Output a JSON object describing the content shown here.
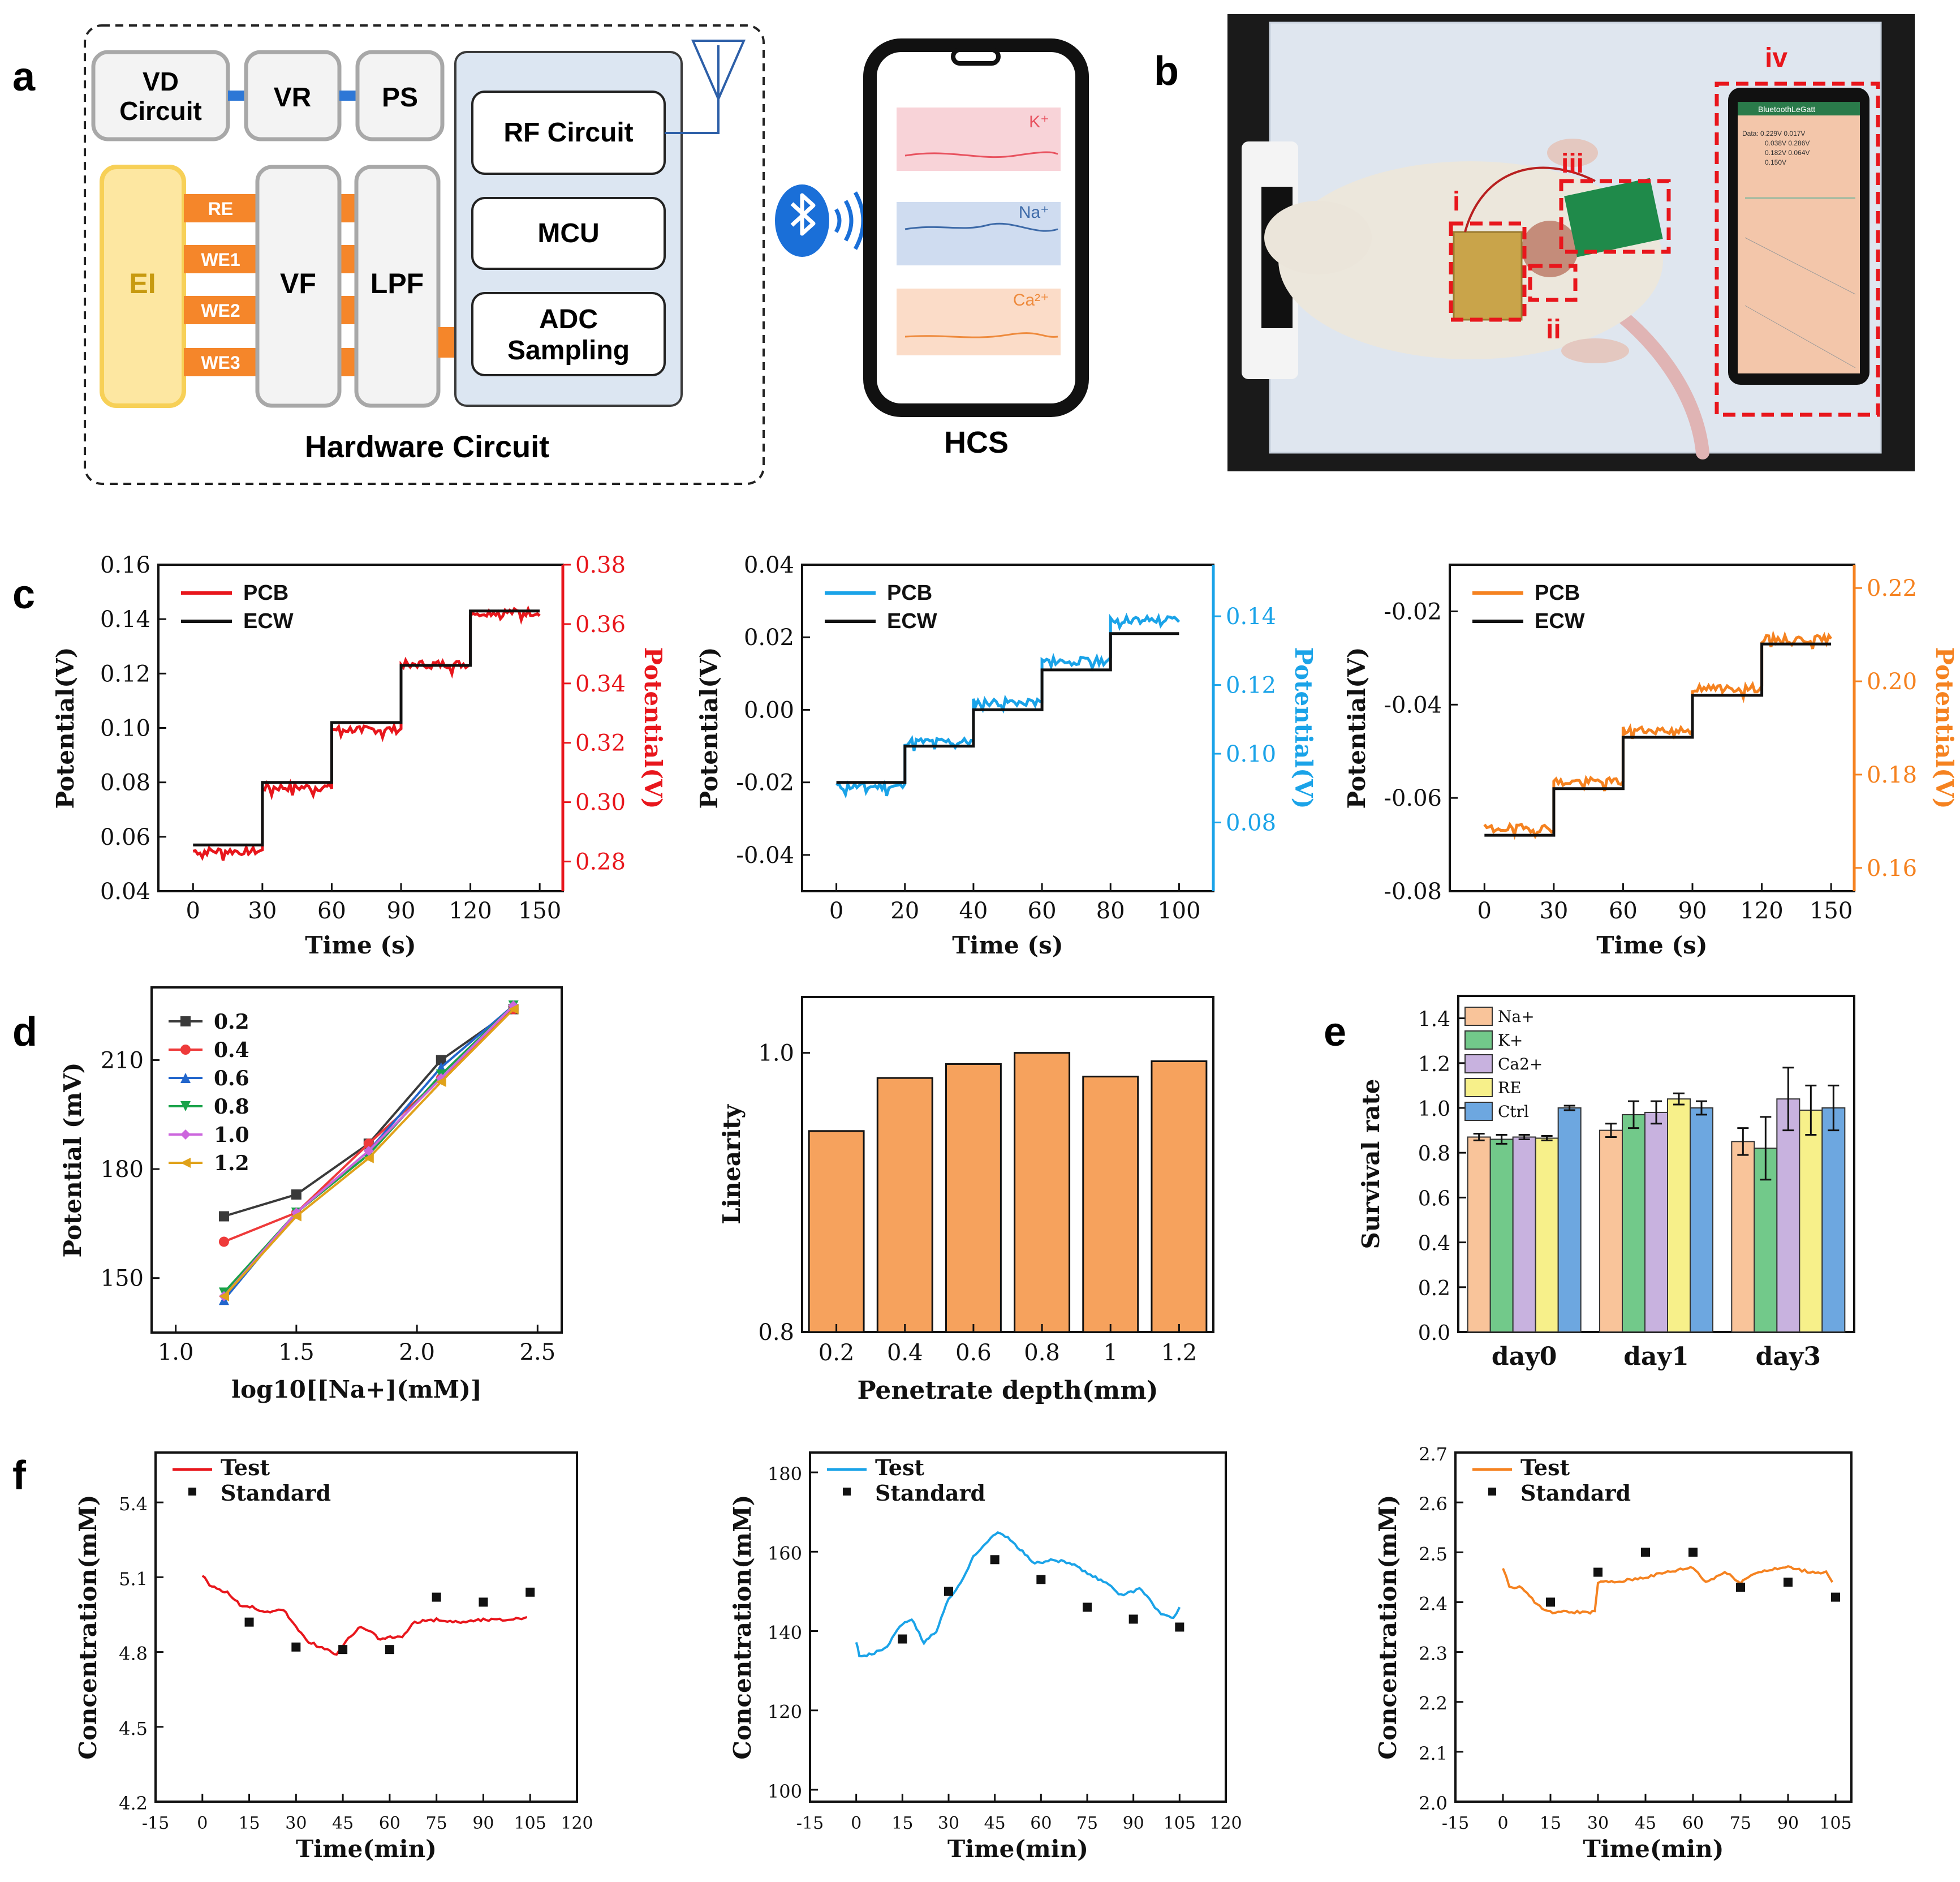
{
  "panels": {
    "a": "a",
    "b": "b",
    "c": "c",
    "d": "d",
    "e": "e",
    "f": "f"
  },
  "schematic": {
    "vd_circuit": [
      "VD",
      "Circuit"
    ],
    "vr": "VR",
    "ps": "PS",
    "ei": "EI",
    "electrodes": [
      "RE",
      "WE1",
      "WE2",
      "WE3"
    ],
    "vf": "VF",
    "lpf": "LPF",
    "rf_circuit": "RF Circuit",
    "mcu": "MCU",
    "adc": [
      "ADC",
      "Sampling"
    ],
    "hardware_caption": "Hardware Circuit",
    "hcs_caption": "HCS",
    "phone_traces": [
      {
        "label": "K⁺",
        "band": "#f8d3d8",
        "line": "#e8525f"
      },
      {
        "label": "Na⁺",
        "band": "#cfdcf0",
        "line": "#3d6aa8"
      },
      {
        "label": "Ca²⁺",
        "band": "#fbdcc8",
        "line": "#ee8a3c"
      }
    ]
  },
  "photo": {
    "labels": [
      "i",
      "ii",
      "iii",
      "iv"
    ],
    "screen_header": "BluetoothLeGatt",
    "screen_text": [
      "Data:  0.229V  0.017V",
      "0.038V  0.286V",
      "0.182V  0.064V",
      "0.150V"
    ]
  },
  "chart_data": [
    {
      "id": "c1",
      "type": "line",
      "xlabel": "Time (s)",
      "ylabel": "Potential(V)",
      "y2label": "Potential(V)",
      "xlim": [
        -15,
        160
      ],
      "xticks": [
        0,
        30,
        60,
        90,
        120,
        150
      ],
      "ylim": [
        0.04,
        0.16
      ],
      "yticks": [
        0.04,
        0.06,
        0.08,
        0.1,
        0.12,
        0.14,
        0.16
      ],
      "y2lim": [
        0.27,
        0.38
      ],
      "y2ticks": [
        0.28,
        0.3,
        0.32,
        0.34,
        0.36,
        0.38
      ],
      "legend": [
        "PCB",
        "ECW"
      ],
      "color": "#e8161c",
      "steps_t": [
        0,
        30,
        60,
        90,
        120,
        150
      ],
      "ecw_levels": [
        0.057,
        0.08,
        0.102,
        0.123,
        0.143
      ],
      "pcb_levels": [
        0.2835,
        0.305,
        0.3245,
        0.3465,
        0.364
      ]
    },
    {
      "id": "c2",
      "type": "line",
      "xlabel": "Time (s)",
      "ylabel": "Potential(V)",
      "y2label": "Potential(V)",
      "xlim": [
        -10,
        110
      ],
      "xticks": [
        0,
        20,
        40,
        60,
        80,
        100
      ],
      "ylim": [
        -0.05,
        0.04
      ],
      "yticks": [
        -0.04,
        -0.02,
        0.0,
        0.02,
        0.04
      ],
      "y2lim": [
        0.06,
        0.155
      ],
      "y2ticks": [
        0.08,
        0.1,
        0.12,
        0.14
      ],
      "legend": [
        "PCB",
        "ECW"
      ],
      "color": "#1aa3e8",
      "steps_t": [
        0,
        20,
        40,
        60,
        80,
        100
      ],
      "ecw_levels": [
        -0.02,
        -0.01,
        0.0,
        0.011,
        0.021
      ],
      "pcb_levels": [
        0.0905,
        0.1035,
        0.115,
        0.127,
        0.139
      ]
    },
    {
      "id": "c3",
      "type": "line",
      "xlabel": "Time (s)",
      "ylabel": "Potential(V)",
      "y2label": "Potential(V)",
      "xlim": [
        -15,
        160
      ],
      "xticks": [
        0,
        30,
        60,
        90,
        120,
        150
      ],
      "ylim": [
        -0.08,
        -0.01
      ],
      "yticks": [
        -0.08,
        -0.06,
        -0.04,
        -0.02
      ],
      "y2lim": [
        0.155,
        0.225
      ],
      "y2ticks": [
        0.16,
        0.18,
        0.2,
        0.22
      ],
      "legend": [
        "PCB",
        "ECW"
      ],
      "color": "#f58220",
      "steps_t": [
        0,
        30,
        60,
        90,
        120,
        150
      ],
      "ecw_levels": [
        -0.068,
        -0.058,
        -0.047,
        -0.038,
        -0.027
      ],
      "pcb_levels": [
        0.1685,
        0.1785,
        0.1895,
        0.1985,
        0.209
      ]
    },
    {
      "id": "d1",
      "type": "line",
      "xlabel": "log10[[Na+](mM)]",
      "ylabel": "Potential (mV)",
      "xlim": [
        0.9,
        2.6
      ],
      "xticks": [
        1.0,
        1.5,
        2.0,
        2.5
      ],
      "ylim": [
        135,
        230
      ],
      "yticks": [
        150,
        180,
        210
      ],
      "x": [
        1.2,
        1.5,
        1.8,
        2.1,
        2.4
      ],
      "series": [
        {
          "name": "0.2",
          "color": "#3a3a3a",
          "marker": "square",
          "values": [
            167,
            173,
            187,
            210,
            224
          ]
        },
        {
          "name": "0.4",
          "color": "#ee3a3a",
          "marker": "circle",
          "values": [
            160,
            168,
            187,
            205,
            224
          ]
        },
        {
          "name": "0.6",
          "color": "#2266cc",
          "marker": "triangle-up",
          "values": [
            144,
            168,
            185,
            208,
            225
          ]
        },
        {
          "name": "0.8",
          "color": "#1aa34a",
          "marker": "triangle-down",
          "values": [
            146,
            168,
            184,
            206,
            225
          ]
        },
        {
          "name": "1.0",
          "color": "#cc66dd",
          "marker": "diamond",
          "values": [
            145,
            168,
            185,
            205,
            225
          ]
        },
        {
          "name": "1.2",
          "color": "#e0a21a",
          "marker": "triangle-left",
          "values": [
            145,
            167,
            183,
            204,
            224
          ]
        }
      ]
    },
    {
      "id": "d2",
      "type": "bar",
      "xlabel": "Penetrate depth(mm)",
      "ylabel": "Linearity",
      "ylim": [
        0.8,
        1.04
      ],
      "yticks": [
        0.8,
        1.0
      ],
      "categories": [
        "0.2",
        "0.4",
        "0.6",
        "0.8",
        "1",
        "1.2"
      ],
      "values": [
        0.944,
        0.982,
        0.992,
        1.0,
        0.983,
        0.994
      ],
      "color": "#f6a25d"
    },
    {
      "id": "e",
      "type": "bar",
      "xlabel": "",
      "ylabel": "Survival rate",
      "ylim": [
        0,
        1.5
      ],
      "yticks": [
        0.0,
        0.2,
        0.4,
        0.6,
        0.8,
        1.0,
        1.2,
        1.4
      ],
      "categories": [
        "day0",
        "day1",
        "day3"
      ],
      "series": [
        {
          "name": "Na+",
          "color": "#f9c49a",
          "values": [
            0.87,
            0.9,
            0.85
          ],
          "err": [
            0.015,
            0.03,
            0.06
          ]
        },
        {
          "name": "K+",
          "color": "#72c98a",
          "values": [
            0.86,
            0.97,
            0.82
          ],
          "err": [
            0.02,
            0.06,
            0.14
          ]
        },
        {
          "name": "Ca2+",
          "color": "#c8b2df",
          "values": [
            0.87,
            0.98,
            1.04
          ],
          "err": [
            0.01,
            0.05,
            0.14
          ]
        },
        {
          "name": "RE",
          "color": "#f7f08a",
          "values": [
            0.865,
            1.04,
            0.99
          ],
          "err": [
            0.01,
            0.025,
            0.11
          ]
        },
        {
          "name": "Ctrl",
          "color": "#6da7e0",
          "values": [
            1.0,
            1.0,
            1.0
          ],
          "err": [
            0.01,
            0.03,
            0.1
          ]
        }
      ]
    },
    {
      "id": "f1",
      "type": "line",
      "xlabel": "Time(min)",
      "ylabel": "Concentration(mM)",
      "xlim": [
        -15,
        120
      ],
      "xticks": [
        -15,
        0,
        15,
        30,
        45,
        60,
        75,
        90,
        105,
        120
      ],
      "ylim": [
        4.2,
        5.6
      ],
      "yticks": [
        4.2,
        4.5,
        4.8,
        5.1,
        5.4
      ],
      "legend": [
        "Test",
        "Standard"
      ],
      "color": "#e8161c",
      "test_points": [
        [
          0,
          5.11
        ],
        [
          3,
          5.06
        ],
        [
          8,
          5.04
        ],
        [
          12,
          4.99
        ],
        [
          16,
          4.98
        ],
        [
          20,
          4.96
        ],
        [
          26,
          4.97
        ],
        [
          30,
          4.9
        ],
        [
          34,
          4.84
        ],
        [
          40,
          4.81
        ],
        [
          43,
          4.79
        ],
        [
          46,
          4.84
        ],
        [
          50,
          4.9
        ],
        [
          54,
          4.88
        ],
        [
          57,
          4.85
        ],
        [
          61,
          4.86
        ],
        [
          64,
          4.86
        ],
        [
          68,
          4.92
        ],
        [
          75,
          4.93
        ],
        [
          82,
          4.92
        ],
        [
          90,
          4.93
        ],
        [
          97,
          4.93
        ],
        [
          104,
          4.94
        ]
      ],
      "standard": [
        [
          15,
          4.92
        ],
        [
          30,
          4.82
        ],
        [
          45,
          4.81
        ],
        [
          60,
          4.81
        ],
        [
          75,
          5.02
        ],
        [
          90,
          5.0
        ],
        [
          105,
          5.04
        ]
      ]
    },
    {
      "id": "f2",
      "type": "line",
      "xlabel": "Time(min)",
      "ylabel": "Concentration(mM)",
      "xlim": [
        -15,
        120
      ],
      "xticks": [
        -15,
        0,
        15,
        30,
        45,
        60,
        75,
        90,
        105,
        120
      ],
      "ylim": [
        97,
        185
      ],
      "yticks": [
        100,
        120,
        140,
        160,
        180
      ],
      "legend": [
        "Test",
        "Standard"
      ],
      "color": "#1aa3e8",
      "test_points": [
        [
          0,
          137
        ],
        [
          1,
          134
        ],
        [
          5,
          134
        ],
        [
          10,
          136
        ],
        [
          15,
          142
        ],
        [
          18,
          143
        ],
        [
          22,
          137
        ],
        [
          26,
          140
        ],
        [
          30,
          148
        ],
        [
          34,
          152
        ],
        [
          38,
          159
        ],
        [
          42,
          162
        ],
        [
          46,
          165
        ],
        [
          50,
          163
        ],
        [
          54,
          160
        ],
        [
          58,
          157
        ],
        [
          64,
          158
        ],
        [
          70,
          157
        ],
        [
          76,
          154
        ],
        [
          82,
          152
        ],
        [
          86,
          149
        ],
        [
          90,
          150
        ],
        [
          92,
          151
        ],
        [
          96,
          147
        ],
        [
          98,
          145
        ],
        [
          100,
          144
        ],
        [
          103,
          143
        ],
        [
          105,
          146
        ]
      ],
      "standard": [
        [
          15,
          138
        ],
        [
          30,
          150
        ],
        [
          45,
          158
        ],
        [
          60,
          153
        ],
        [
          75,
          146
        ],
        [
          90,
          143
        ],
        [
          105,
          141
        ]
      ]
    },
    {
      "id": "f3",
      "type": "line",
      "xlabel": "Time(min)",
      "ylabel": "Concentration(mM)",
      "xlim": [
        -15,
        110
      ],
      "xticks": [
        -15,
        0,
        15,
        30,
        45,
        60,
        75,
        90,
        105
      ],
      "ylim": [
        2.0,
        2.7
      ],
      "yticks": [
        2.0,
        2.1,
        2.2,
        2.3,
        2.4,
        2.5,
        2.6,
        2.7
      ],
      "legend": [
        "Test",
        "Standard"
      ],
      "color": "#f58220",
      "test_points": [
        [
          0,
          2.47
        ],
        [
          2,
          2.43
        ],
        [
          6,
          2.43
        ],
        [
          10,
          2.4
        ],
        [
          14,
          2.38
        ],
        [
          20,
          2.38
        ],
        [
          26,
          2.38
        ],
        [
          29,
          2.38
        ],
        [
          30,
          2.44
        ],
        [
          36,
          2.44
        ],
        [
          45,
          2.45
        ],
        [
          52,
          2.46
        ],
        [
          60,
          2.47
        ],
        [
          64,
          2.44
        ],
        [
          70,
          2.46
        ],
        [
          75,
          2.44
        ],
        [
          80,
          2.46
        ],
        [
          90,
          2.47
        ],
        [
          97,
          2.46
        ],
        [
          102,
          2.46
        ],
        [
          104,
          2.44
        ]
      ],
      "standard": [
        [
          15,
          2.4
        ],
        [
          30,
          2.46
        ],
        [
          45,
          2.5
        ],
        [
          60,
          2.5
        ],
        [
          75,
          2.43
        ],
        [
          90,
          2.44
        ],
        [
          105,
          2.41
        ]
      ]
    }
  ]
}
